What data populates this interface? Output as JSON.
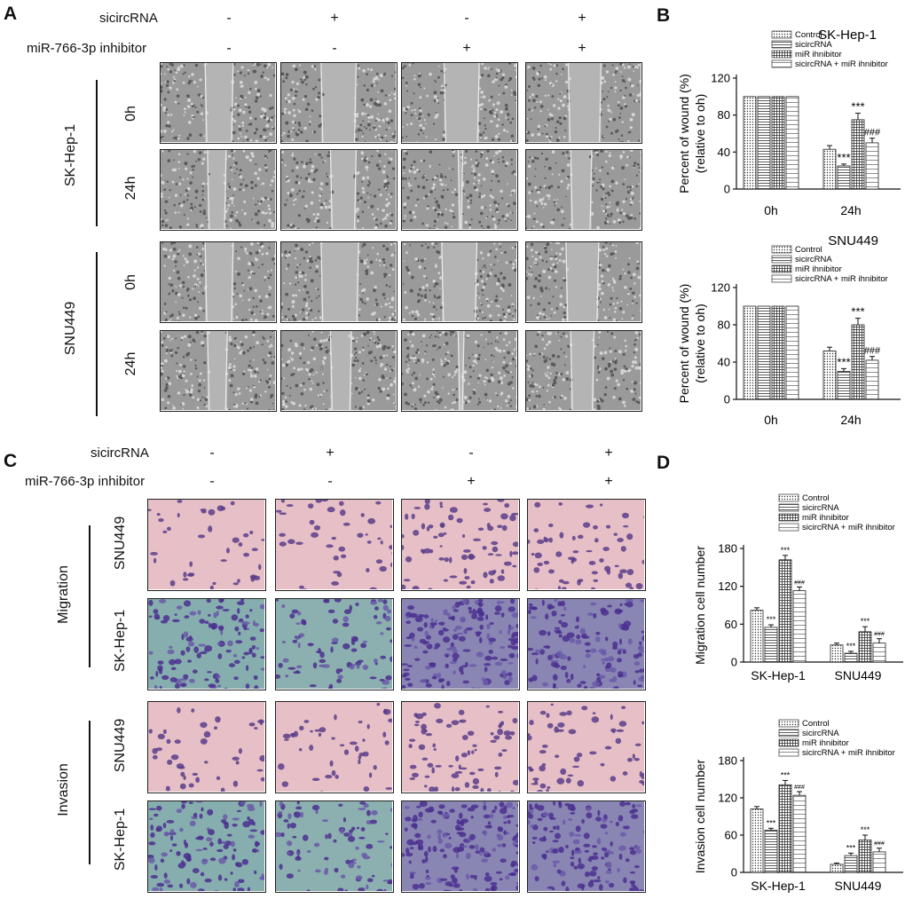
{
  "panels": {
    "A": "A",
    "B": "B",
    "C": "C",
    "D": "D"
  },
  "panelA": {
    "header": {
      "row1": {
        "label": "sicircRNA",
        "signs": [
          "-",
          "+",
          "-",
          "+"
        ]
      },
      "row2": {
        "label": "miR-766-3p inhibitor",
        "signs": [
          "-",
          "-",
          "+",
          "+"
        ]
      }
    },
    "groups": [
      "SK-Hep-1",
      "SNU449"
    ],
    "timepoints": [
      "0h",
      "24h"
    ]
  },
  "panelC": {
    "header": {
      "row1": {
        "label": "sicircRNA",
        "signs": [
          "-",
          "+",
          "-",
          "+"
        ]
      },
      "row2": {
        "label": "miR-766-3p inhibitor",
        "signs": [
          "-",
          "-",
          "+",
          "+"
        ]
      }
    },
    "groups": [
      "Migration",
      "Invasion"
    ],
    "cells": [
      "SNU449",
      "SK-Hep-1"
    ]
  },
  "chart_data": [
    {
      "type": "bar",
      "title": "SK-Hep-1",
      "ylabel": "Percent of wound (%)\n(relative to oh)",
      "categories": [
        "0h",
        "24h"
      ],
      "ylim": [
        0,
        120
      ],
      "yticks": [
        0,
        40,
        80,
        120
      ],
      "legend": [
        "Control",
        "sicircRNA",
        "miR ihnibitor",
        "sicircRNA + miR ihnibitor"
      ],
      "series": [
        {
          "name": "Control",
          "values": [
            100,
            43
          ],
          "err": [
            0,
            4
          ]
        },
        {
          "name": "sicircRNA",
          "values": [
            100,
            25
          ],
          "err": [
            0,
            2
          ]
        },
        {
          "name": "miR ihnibitor",
          "values": [
            100,
            75
          ],
          "err": [
            0,
            7
          ]
        },
        {
          "name": "sicircRNA + miR ihnibitor",
          "values": [
            100,
            50
          ],
          "err": [
            0,
            5
          ]
        }
      ],
      "annotations": [
        {
          "series": 1,
          "cat": 1,
          "text": "***"
        },
        {
          "series": 2,
          "cat": 1,
          "text": "***"
        },
        {
          "series": 3,
          "cat": 1,
          "text": "###"
        }
      ]
    },
    {
      "type": "bar",
      "title": "SNU449",
      "ylabel": "Percent of wound (%)\n(relative to oh)",
      "categories": [
        "0h",
        "24h"
      ],
      "ylim": [
        0,
        120
      ],
      "yticks": [
        0,
        40,
        80,
        120
      ],
      "legend": [
        "Control",
        "sicircRNA",
        "miR ihnibitor",
        "sicircRNA + miR ihnibitor"
      ],
      "series": [
        {
          "name": "Control",
          "values": [
            100,
            52
          ],
          "err": [
            0,
            4
          ]
        },
        {
          "name": "sicircRNA",
          "values": [
            100,
            30
          ],
          "err": [
            0,
            3
          ]
        },
        {
          "name": "miR ihnibitor",
          "values": [
            100,
            80
          ],
          "err": [
            0,
            7
          ]
        },
        {
          "name": "sicircRNA + miR ihnibitor",
          "values": [
            100,
            42
          ],
          "err": [
            0,
            4
          ]
        }
      ],
      "annotations": [
        {
          "series": 1,
          "cat": 1,
          "text": "***"
        },
        {
          "series": 2,
          "cat": 1,
          "text": "***"
        },
        {
          "series": 3,
          "cat": 1,
          "text": "###"
        }
      ]
    },
    {
      "type": "bar",
      "title": "",
      "ylabel": "Migration cell number",
      "categories": [
        "SK-Hep-1",
        "SNU449"
      ],
      "ylim": [
        0,
        180
      ],
      "yticks": [
        0,
        60,
        120,
        180
      ],
      "legend": [
        "Control",
        "sicircRNA",
        "miR ihnibitor",
        "sicircRNA + miR ihnibitor"
      ],
      "series": [
        {
          "name": "Control",
          "values": [
            82,
            27
          ],
          "err": [
            4,
            3
          ]
        },
        {
          "name": "sicircRNA",
          "values": [
            55,
            14
          ],
          "err": [
            4,
            3
          ]
        },
        {
          "name": "miR ihnibitor",
          "values": [
            162,
            48
          ],
          "err": [
            7,
            8
          ]
        },
        {
          "name": "sicircRNA + miR ihnibitor",
          "values": [
            113,
            30
          ],
          "err": [
            6,
            7
          ]
        }
      ],
      "annotations": [
        {
          "series": 1,
          "cat": 0,
          "text": "***"
        },
        {
          "series": 2,
          "cat": 0,
          "text": "***"
        },
        {
          "series": 3,
          "cat": 0,
          "text": "###"
        },
        {
          "series": 1,
          "cat": 1,
          "text": "***"
        },
        {
          "series": 2,
          "cat": 1,
          "text": "***"
        },
        {
          "series": 3,
          "cat": 1,
          "text": "###"
        }
      ]
    },
    {
      "type": "bar",
      "title": "",
      "ylabel": "Invasion cell number",
      "categories": [
        "SK-Hep-1",
        "SNU449"
      ],
      "ylim": [
        0,
        180
      ],
      "yticks": [
        0,
        60,
        120,
        180
      ],
      "legend": [
        "Control",
        "sicircRNA",
        "miR ihnibitor",
        "sicircRNA + miR ihnibitor"
      ],
      "series": [
        {
          "name": "Control",
          "values": [
            102,
            13
          ],
          "err": [
            4,
            2
          ]
        },
        {
          "name": "sicircRNA",
          "values": [
            68,
            27
          ],
          "err": [
            3,
            4
          ]
        },
        {
          "name": "miR ihnibitor",
          "values": [
            141,
            52
          ],
          "err": [
            7,
            8
          ]
        },
        {
          "name": "sicircRNA + miR ihnibitor",
          "values": [
            124,
            33
          ],
          "err": [
            6,
            6
          ]
        }
      ],
      "annotations": [
        {
          "series": 1,
          "cat": 0,
          "text": "***"
        },
        {
          "series": 2,
          "cat": 0,
          "text": "***"
        },
        {
          "series": 3,
          "cat": 0,
          "text": "###"
        },
        {
          "series": 1,
          "cat": 1,
          "text": "***"
        },
        {
          "series": 2,
          "cat": 1,
          "text": "***"
        },
        {
          "series": 3,
          "cat": 1,
          "text": "###"
        }
      ]
    }
  ]
}
